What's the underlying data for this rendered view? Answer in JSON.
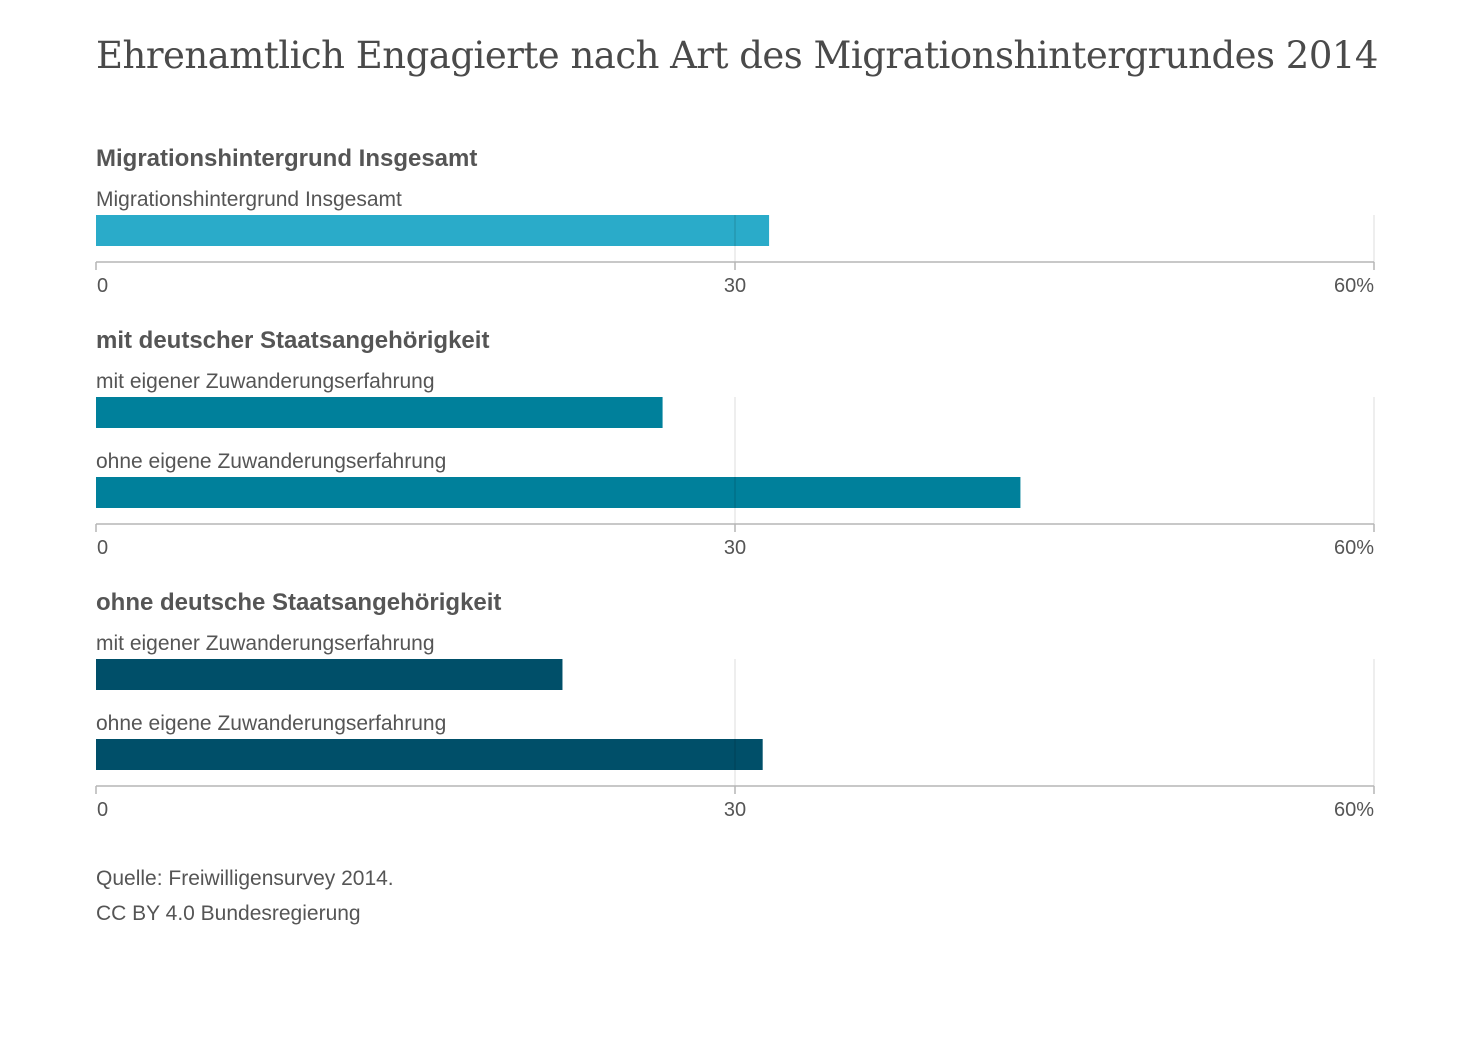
{
  "title": "Ehrenamtlich Engagierte nach Art des Migrationshintergrundes 2014",
  "chart_data": {
    "type": "bar",
    "orientation": "horizontal",
    "title": "Ehrenamtlich Engagierte nach Art des Migrationshintergrundes 2014",
    "xlim": [
      0,
      60
    ],
    "x_ticks": [
      "0",
      "30",
      "60%"
    ],
    "x_tick_values": [
      0,
      30,
      60
    ],
    "grid": true,
    "groups": [
      {
        "name": "Migrationshintergrund Insgesamt",
        "color": "#2aabc9",
        "bars": [
          {
            "label": "Migrationshintergrund Insgesamt",
            "value": 31.6
          }
        ]
      },
      {
        "name": "mit deutscher Staatsangehörigkeit",
        "color": "#00809b",
        "bars": [
          {
            "label": "mit eigener Zuwanderungserfahrung",
            "value": 26.6
          },
          {
            "label": "ohne eigene Zuwanderungserfahrung",
            "value": 43.4
          }
        ]
      },
      {
        "name": "ohne deutsche Staatsangehörigkeit",
        "color": "#004f69",
        "bars": [
          {
            "label": "mit eigener Zuwanderungserfahrung",
            "value": 21.9
          },
          {
            "label": "ohne eigene Zuwanderungserfahrung",
            "value": 31.3
          }
        ]
      }
    ]
  },
  "footer": {
    "source": "Quelle: Freiwilligensurvey 2014.",
    "license": "CC BY 4.0 Bundesregierung"
  }
}
